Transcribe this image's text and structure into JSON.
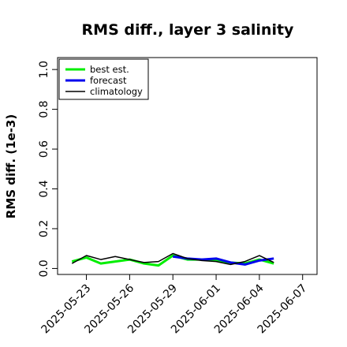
{
  "chart_data": {
    "type": "line",
    "title": "RMS diff., layer 3 salinity",
    "ylabel": "RMS diff. (1e-3)",
    "xlabel": "",
    "ylim": [
      -0.03,
      1.06
    ],
    "yticks": [
      "0.0",
      "0.2",
      "0.4",
      "0.6",
      "0.8",
      "1.0"
    ],
    "xlim": [
      "2025-05-21",
      "2025-06-08"
    ],
    "xticks": [
      {
        "label": "2025-05-23",
        "color": "#000000"
      },
      {
        "label": "2025-05-26",
        "color": "#000000"
      },
      {
        "label": "2025-05-29",
        "color": "#228B22"
      },
      {
        "label": "2025-06-01",
        "color": "#000000"
      },
      {
        "label": "2025-06-04",
        "color": "#000000"
      },
      {
        "label": "2025-06-07",
        "color": "#000000"
      }
    ],
    "x": [
      "2025-05-22",
      "2025-05-23",
      "2025-05-24",
      "2025-05-25",
      "2025-05-26",
      "2025-05-27",
      "2025-05-28",
      "2025-05-29",
      "2025-05-30",
      "2025-05-31",
      "2025-06-01",
      "2025-06-02",
      "2025-06-03",
      "2025-06-04",
      "2025-06-05"
    ],
    "legend_position": "top-left",
    "series": [
      {
        "name": "best est.",
        "color": "#00ee00",
        "width": 3,
        "values": [
          0.035,
          0.055,
          0.025,
          0.035,
          0.045,
          0.025,
          0.015,
          0.065,
          0.045,
          0.045,
          0.04,
          0.03,
          0.025,
          0.045,
          0.025
        ]
      },
      {
        "name": "forecast",
        "color": "#0000ee",
        "width": 3,
        "values": [
          null,
          null,
          null,
          null,
          null,
          null,
          null,
          0.06,
          0.05,
          0.045,
          0.05,
          0.03,
          0.02,
          0.04,
          0.05
        ]
      },
      {
        "name": "climatology",
        "color": "#000000",
        "width": 1.5,
        "values": [
          0.025,
          0.065,
          0.045,
          0.06,
          0.045,
          0.03,
          0.035,
          0.075,
          0.05,
          0.04,
          0.035,
          0.02,
          0.035,
          0.065,
          0.03
        ]
      }
    ]
  }
}
